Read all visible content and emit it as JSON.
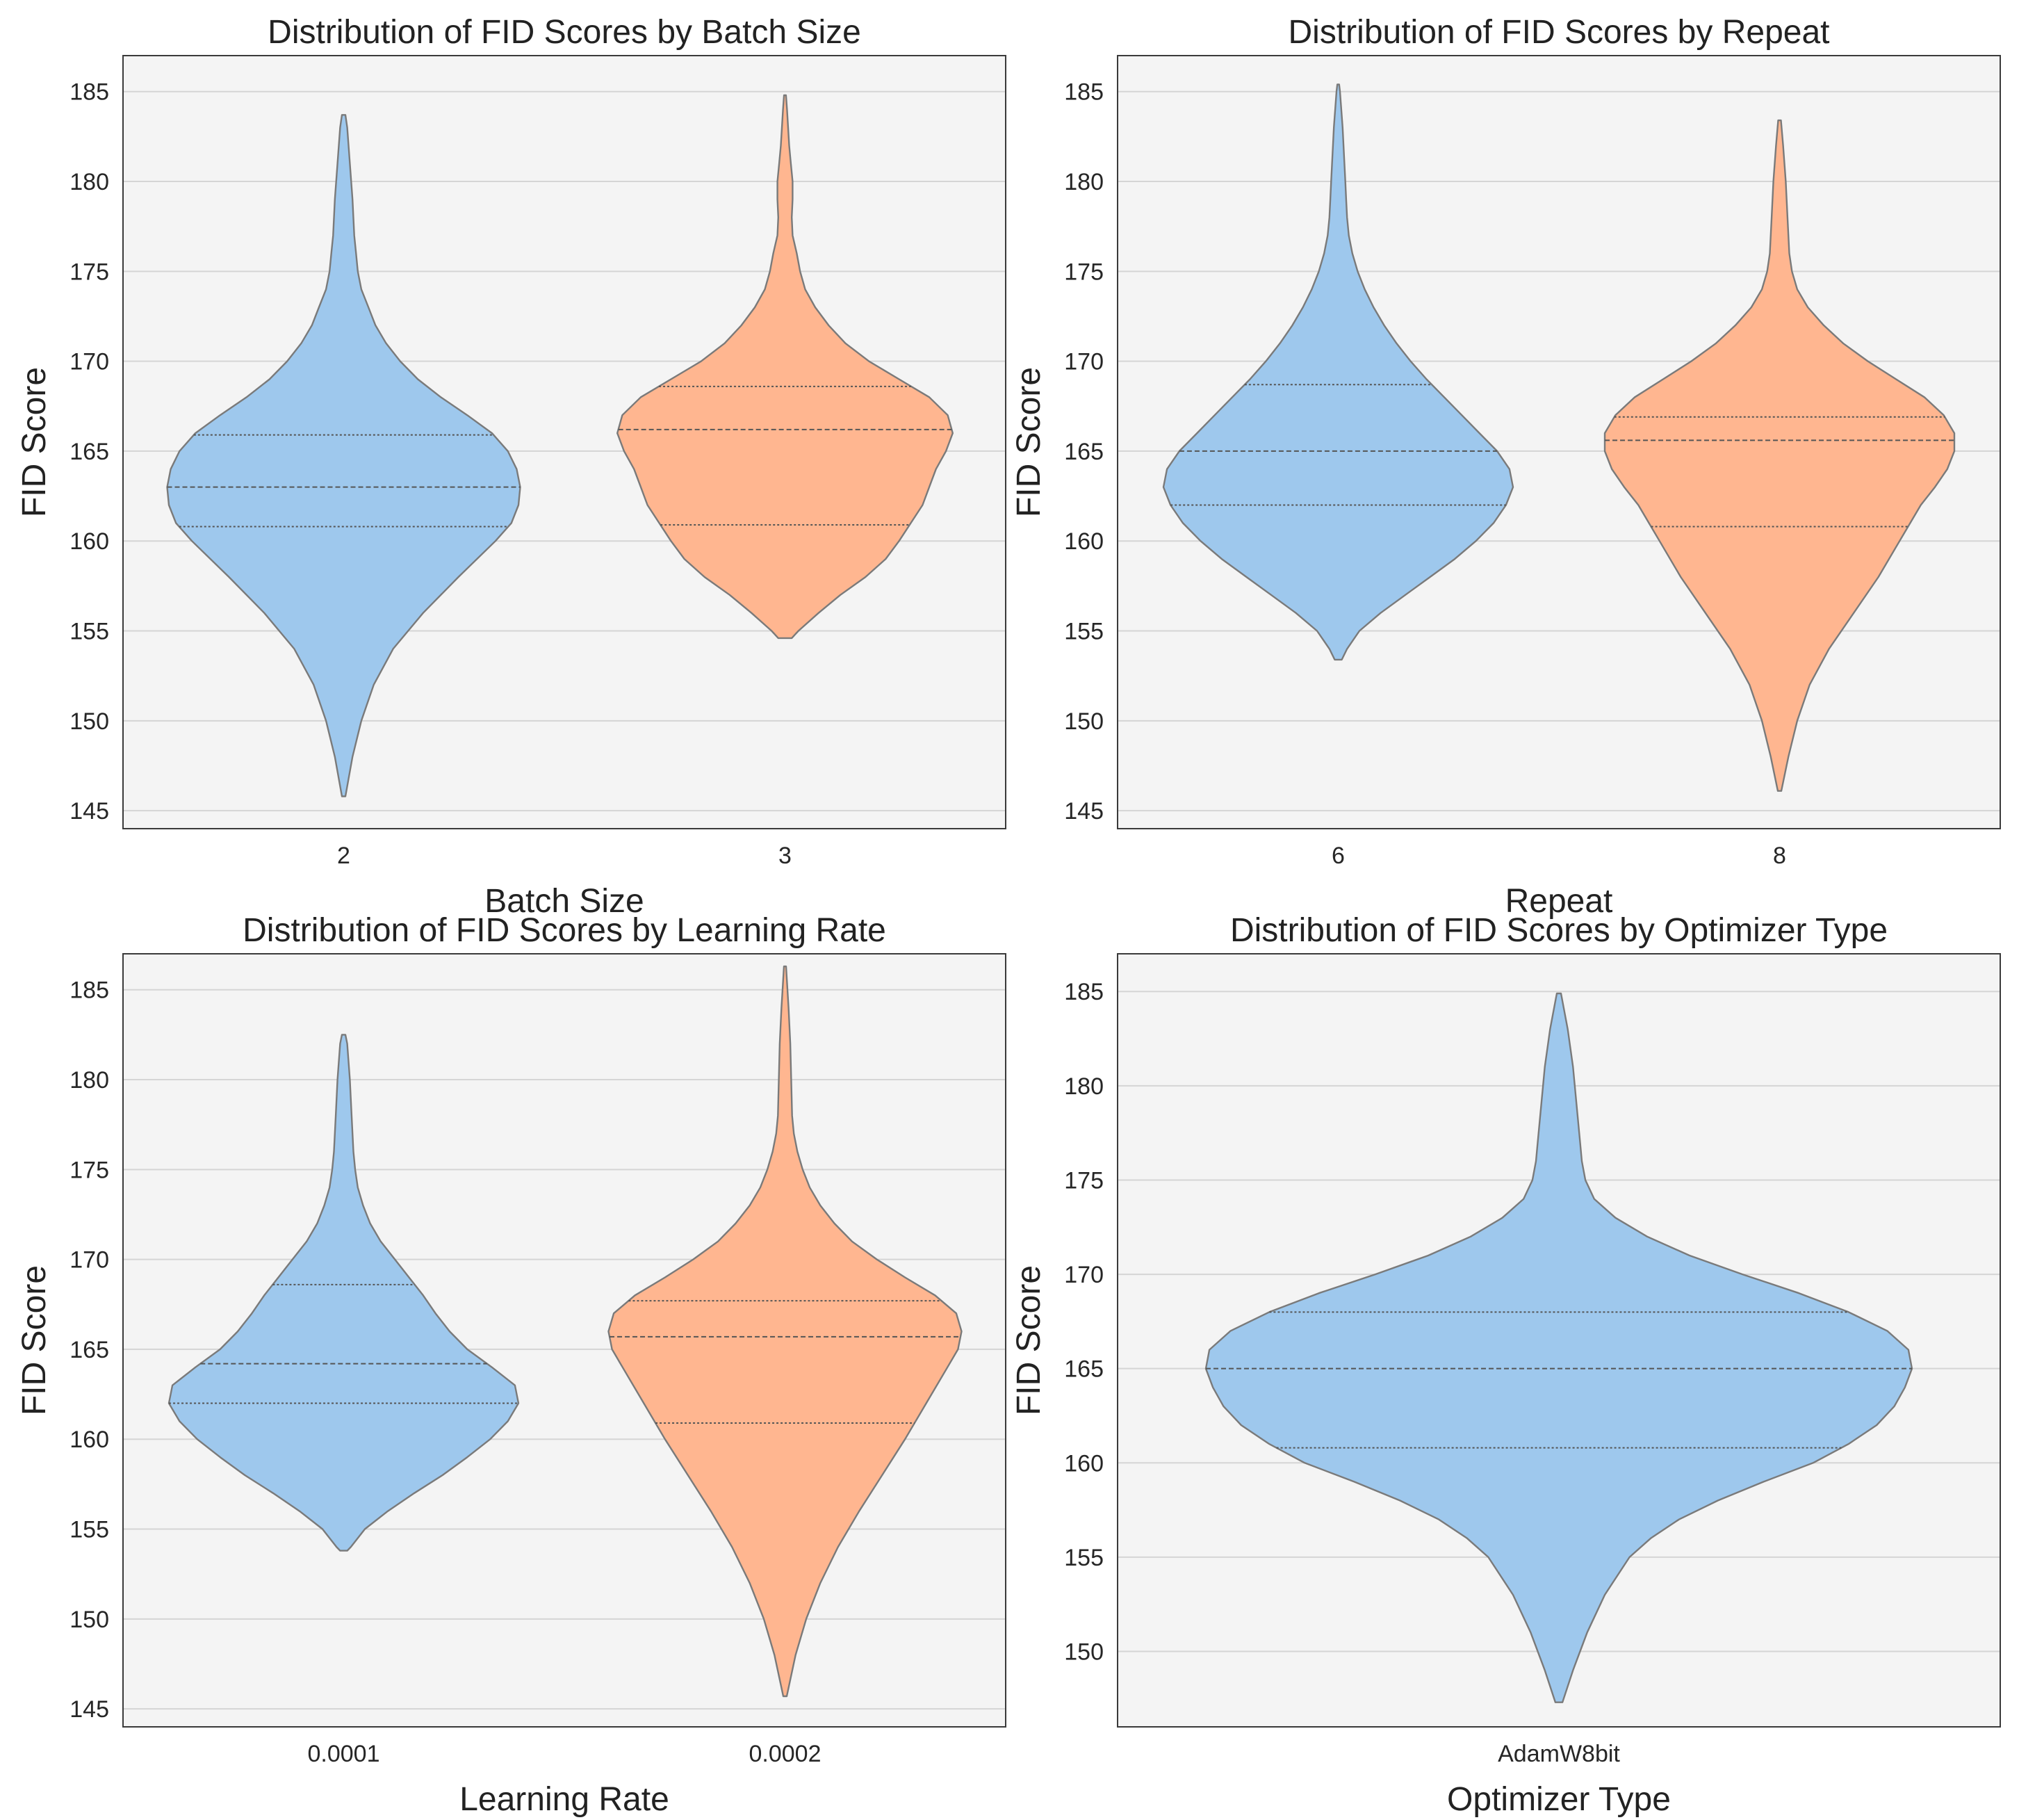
{
  "figure_title": "Distribution of FID Scores",
  "colors": {
    "blue": "#9ec8ed",
    "orange": "#ffb690",
    "edge": "#7a7a7a",
    "plot_bg": "#f4f4f4",
    "grid": "#d5d5d5",
    "frame": "#3a3a3a"
  },
  "chart_data": [
    {
      "type": "violin",
      "title": "Distribution of FID Scores by Batch Size",
      "xlabel": "Batch Size",
      "ylabel": "FID Score",
      "ylim": [
        144,
        187
      ],
      "yticks": [
        145,
        150,
        155,
        160,
        165,
        170,
        175,
        180,
        185
      ],
      "grid": true,
      "categories": [
        "2",
        "3"
      ],
      "violins": [
        {
          "category": "2",
          "color": "blue",
          "max_halfwidth_frac": 0.4,
          "profile": [
            [
              145.8,
              0.01
            ],
            [
              148,
              0.05
            ],
            [
              150,
              0.1
            ],
            [
              152,
              0.17
            ],
            [
              154,
              0.28
            ],
            [
              156,
              0.45
            ],
            [
              158,
              0.65
            ],
            [
              160,
              0.86
            ],
            [
              161,
              0.95
            ],
            [
              162,
              0.99
            ],
            [
              163,
              1.0
            ],
            [
              164,
              0.98
            ],
            [
              165,
              0.93
            ],
            [
              166,
              0.84
            ],
            [
              167,
              0.7
            ],
            [
              168,
              0.55
            ],
            [
              169,
              0.42
            ],
            [
              170,
              0.32
            ],
            [
              171,
              0.24
            ],
            [
              172,
              0.18
            ],
            [
              173,
              0.14
            ],
            [
              174,
              0.1
            ],
            [
              175,
              0.08
            ],
            [
              176,
              0.07
            ],
            [
              177,
              0.06
            ],
            [
              179,
              0.05
            ],
            [
              181,
              0.035
            ],
            [
              183,
              0.02
            ],
            [
              183.7,
              0.01
            ]
          ],
          "quartiles": [
            160.8,
            163.0,
            165.9
          ]
        },
        {
          "category": "3",
          "color": "orange",
          "max_halfwidth_frac": 0.38,
          "profile": [
            [
              154.6,
              0.04
            ],
            [
              155,
              0.08
            ],
            [
              156,
              0.2
            ],
            [
              157,
              0.33
            ],
            [
              158,
              0.48
            ],
            [
              159,
              0.6
            ],
            [
              160,
              0.68
            ],
            [
              161,
              0.75
            ],
            [
              162,
              0.82
            ],
            [
              163,
              0.86
            ],
            [
              164,
              0.9
            ],
            [
              165,
              0.96
            ],
            [
              166,
              1.0
            ],
            [
              167,
              0.97
            ],
            [
              168,
              0.86
            ],
            [
              169,
              0.68
            ],
            [
              170,
              0.5
            ],
            [
              171,
              0.36
            ],
            [
              172,
              0.26
            ],
            [
              173,
              0.18
            ],
            [
              174,
              0.12
            ],
            [
              175,
              0.09
            ],
            [
              176,
              0.07
            ],
            [
              177,
              0.045
            ],
            [
              178,
              0.04
            ],
            [
              179,
              0.045
            ],
            [
              180,
              0.045
            ],
            [
              181,
              0.035
            ],
            [
              182,
              0.025
            ],
            [
              184,
              0.012
            ],
            [
              184.8,
              0.006
            ]
          ],
          "quartiles": [
            160.9,
            166.2,
            168.6
          ]
        }
      ]
    },
    {
      "type": "violin",
      "title": "Distribution of FID Scores by Repeat",
      "xlabel": "Repeat",
      "ylabel": "FID Score",
      "ylim": [
        144,
        187
      ],
      "yticks": [
        145,
        150,
        155,
        160,
        165,
        170,
        175,
        180,
        185
      ],
      "grid": true,
      "categories": [
        "6",
        "8"
      ],
      "violins": [
        {
          "category": "6",
          "color": "blue",
          "max_halfwidth_frac": 0.4,
          "profile": [
            [
              153.4,
              0.02
            ],
            [
              154,
              0.05
            ],
            [
              155,
              0.12
            ],
            [
              156,
              0.24
            ],
            [
              157,
              0.38
            ],
            [
              158,
              0.52
            ],
            [
              159,
              0.66
            ],
            [
              160,
              0.78
            ],
            [
              161,
              0.88
            ],
            [
              162,
              0.95
            ],
            [
              163,
              0.99
            ],
            [
              164,
              0.97
            ],
            [
              165,
              0.9
            ],
            [
              166,
              0.8
            ],
            [
              167,
              0.7
            ],
            [
              168,
              0.6
            ],
            [
              169,
              0.5
            ],
            [
              170,
              0.41
            ],
            [
              171,
              0.33
            ],
            [
              172,
              0.26
            ],
            [
              173,
              0.2
            ],
            [
              174,
              0.15
            ],
            [
              175,
              0.11
            ],
            [
              176,
              0.08
            ],
            [
              177,
              0.06
            ],
            [
              178,
              0.05
            ],
            [
              179,
              0.045
            ],
            [
              180,
              0.04
            ],
            [
              181,
              0.035
            ],
            [
              183,
              0.025
            ],
            [
              185,
              0.01
            ],
            [
              185.4,
              0.005
            ]
          ],
          "quartiles": [
            162.0,
            165.0,
            168.7
          ]
        },
        {
          "category": "8",
          "color": "orange",
          "max_halfwidth_frac": 0.4,
          "profile": [
            [
              146.1,
              0.01
            ],
            [
              148,
              0.05
            ],
            [
              150,
              0.1
            ],
            [
              152,
              0.17
            ],
            [
              154,
              0.28
            ],
            [
              156,
              0.42
            ],
            [
              158,
              0.56
            ],
            [
              160,
              0.68
            ],
            [
              162,
              0.8
            ],
            [
              163,
              0.88
            ],
            [
              164,
              0.95
            ],
            [
              165,
              0.99
            ],
            [
              166,
              0.99
            ],
            [
              167,
              0.93
            ],
            [
              168,
              0.82
            ],
            [
              169,
              0.66
            ],
            [
              170,
              0.5
            ],
            [
              171,
              0.36
            ],
            [
              172,
              0.25
            ],
            [
              173,
              0.16
            ],
            [
              174,
              0.1
            ],
            [
              175,
              0.07
            ],
            [
              176,
              0.055
            ],
            [
              178,
              0.045
            ],
            [
              180,
              0.035
            ],
            [
              182,
              0.02
            ],
            [
              183.4,
              0.008
            ]
          ],
          "quartiles": [
            160.8,
            165.6,
            166.9
          ]
        }
      ]
    },
    {
      "type": "violin",
      "title": "Distribution of FID Scores by Learning Rate",
      "xlabel": "Learning Rate",
      "ylabel": "FID Score",
      "ylim": [
        144,
        187
      ],
      "yticks": [
        145,
        150,
        155,
        160,
        165,
        170,
        175,
        180,
        185
      ],
      "grid": true,
      "categories": [
        "0.0001",
        "0.0002"
      ],
      "violins": [
        {
          "category": "0.0001",
          "color": "blue",
          "max_halfwidth_frac": 0.4,
          "profile": [
            [
              153.8,
              0.02
            ],
            [
              154,
              0.04
            ],
            [
              155,
              0.12
            ],
            [
              156,
              0.25
            ],
            [
              157,
              0.4
            ],
            [
              158,
              0.56
            ],
            [
              159,
              0.7
            ],
            [
              160,
              0.83
            ],
            [
              161,
              0.93
            ],
            [
              162,
              0.99
            ],
            [
              163,
              0.97
            ],
            [
              164,
              0.84
            ],
            [
              165,
              0.7
            ],
            [
              166,
              0.6
            ],
            [
              167,
              0.52
            ],
            [
              168,
              0.45
            ],
            [
              169,
              0.37
            ],
            [
              170,
              0.29
            ],
            [
              171,
              0.21
            ],
            [
              172,
              0.15
            ],
            [
              173,
              0.11
            ],
            [
              174,
              0.08
            ],
            [
              175,
              0.065
            ],
            [
              176,
              0.055
            ],
            [
              177,
              0.05
            ],
            [
              178,
              0.045
            ],
            [
              180,
              0.035
            ],
            [
              182,
              0.02
            ],
            [
              182.5,
              0.01
            ]
          ],
          "quartiles": [
            162.0,
            164.2,
            168.6
          ]
        },
        {
          "category": "0.0002",
          "color": "orange",
          "max_halfwidth_frac": 0.4,
          "profile": [
            [
              145.7,
              0.01
            ],
            [
              148,
              0.06
            ],
            [
              150,
              0.12
            ],
            [
              152,
              0.2
            ],
            [
              154,
              0.3
            ],
            [
              156,
              0.42
            ],
            [
              158,
              0.55
            ],
            [
              160,
              0.68
            ],
            [
              162,
              0.8
            ],
            [
              164,
              0.92
            ],
            [
              165,
              0.98
            ],
            [
              166,
              1.0
            ],
            [
              167,
              0.97
            ],
            [
              168,
              0.85
            ],
            [
              169,
              0.68
            ],
            [
              170,
              0.52
            ],
            [
              171,
              0.38
            ],
            [
              172,
              0.28
            ],
            [
              173,
              0.2
            ],
            [
              174,
              0.14
            ],
            [
              175,
              0.1
            ],
            [
              176,
              0.07
            ],
            [
              177,
              0.05
            ],
            [
              178,
              0.04
            ],
            [
              180,
              0.035
            ],
            [
              182,
              0.03
            ],
            [
              184,
              0.02
            ],
            [
              186.3,
              0.006
            ]
          ],
          "quartiles": [
            160.9,
            165.7,
            167.7
          ]
        }
      ]
    },
    {
      "type": "violin",
      "title": "Distribution of FID Scores by Optimizer Type",
      "xlabel": "Optimizer Type",
      "ylabel": "FID Score",
      "ylim": [
        146,
        187
      ],
      "yticks": [
        150,
        155,
        160,
        165,
        170,
        175,
        180,
        185
      ],
      "grid": true,
      "categories": [
        "AdamW8bit"
      ],
      "violins": [
        {
          "category": "AdamW8bit",
          "color": "blue",
          "max_halfwidth_frac": 0.4,
          "profile": [
            [
              147.3,
              0.01
            ],
            [
              149,
              0.04
            ],
            [
              151,
              0.08
            ],
            [
              153,
              0.13
            ],
            [
              155,
              0.2
            ],
            [
              156,
              0.26
            ],
            [
              157,
              0.34
            ],
            [
              158,
              0.45
            ],
            [
              159,
              0.58
            ],
            [
              160,
              0.72
            ],
            [
              161,
              0.82
            ],
            [
              162,
              0.9
            ],
            [
              163,
              0.95
            ],
            [
              164,
              0.98
            ],
            [
              165,
              1.0
            ],
            [
              166,
              0.99
            ],
            [
              167,
              0.93
            ],
            [
              168,
              0.82
            ],
            [
              169,
              0.68
            ],
            [
              170,
              0.52
            ],
            [
              171,
              0.37
            ],
            [
              172,
              0.25
            ],
            [
              173,
              0.16
            ],
            [
              174,
              0.1
            ],
            [
              175,
              0.075
            ],
            [
              176,
              0.065
            ],
            [
              177,
              0.06
            ],
            [
              179,
              0.05
            ],
            [
              181,
              0.04
            ],
            [
              183,
              0.025
            ],
            [
              184.9,
              0.006
            ]
          ],
          "quartiles": [
            160.8,
            165.0,
            168.0
          ]
        }
      ]
    }
  ]
}
